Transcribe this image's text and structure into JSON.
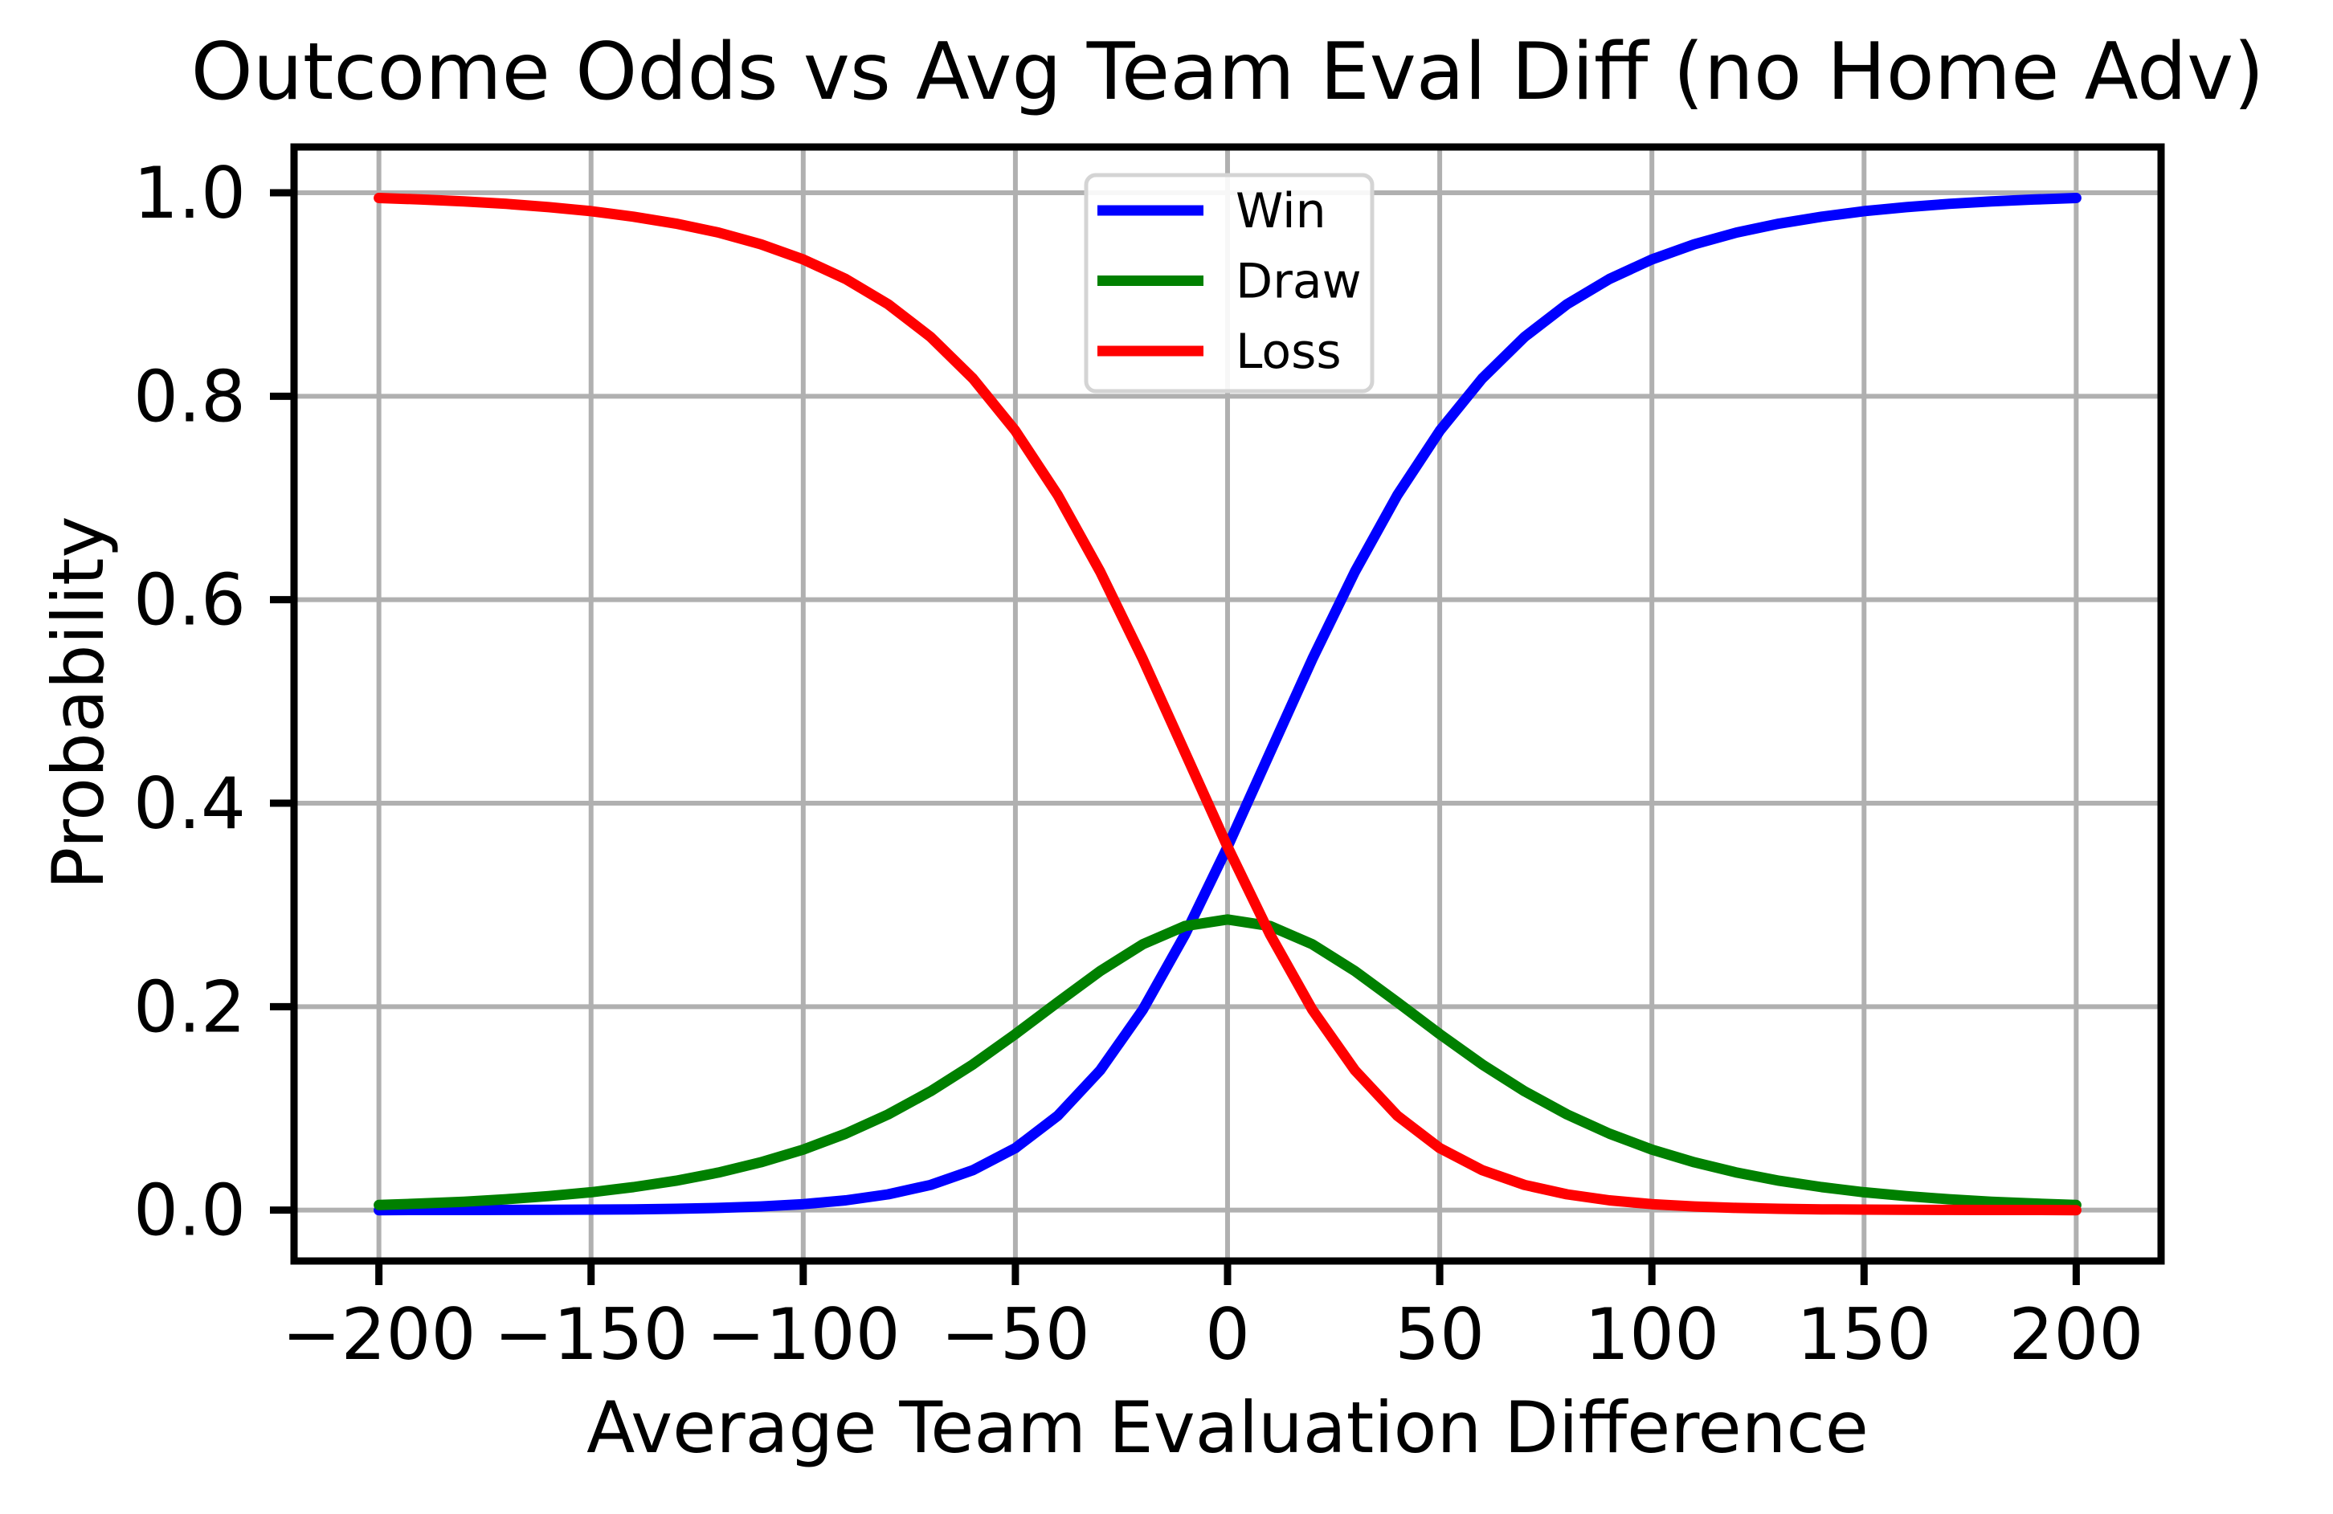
{
  "chart_data": {
    "type": "line",
    "title": "Outcome Odds vs Avg Team Eval Diff (no Home Adv)",
    "xlabel": "Average Team Evaluation Difference",
    "ylabel": "Probability",
    "xlim": [
      -220,
      220
    ],
    "ylim": [
      -0.05,
      1.045
    ],
    "grid": true,
    "x_ticks": {
      "values": [
        -200,
        -150,
        -100,
        -50,
        0,
        50,
        100,
        150,
        200
      ],
      "labels": [
        "−200",
        "−150",
        "−100",
        "−50",
        "0",
        "50",
        "100",
        "150",
        "200"
      ]
    },
    "y_ticks": {
      "values": [
        0.0,
        0.2,
        0.4,
        0.6,
        0.8,
        1.0
      ],
      "labels": [
        "0.0",
        "0.2",
        "0.4",
        "0.6",
        "0.8",
        "1.0"
      ]
    },
    "x": [
      -200,
      -190,
      -180,
      -170,
      -160,
      -150,
      -140,
      -130,
      -120,
      -110,
      -100,
      -90,
      -80,
      -70,
      -60,
      -50,
      -40,
      -30,
      -20,
      -10,
      0,
      10,
      20,
      30,
      40,
      50,
      60,
      70,
      80,
      90,
      100,
      110,
      120,
      130,
      140,
      150,
      160,
      170,
      180,
      190,
      200
    ],
    "series": [
      {
        "name": "Win",
        "color": "#0000ff",
        "values": [
          0.0,
          0.0001,
          0.0001,
          0.0002,
          0.0003,
          0.0005,
          0.0008,
          0.0013,
          0.0022,
          0.0036,
          0.0059,
          0.0096,
          0.0155,
          0.0248,
          0.0393,
          0.061,
          0.0928,
          0.1375,
          0.1969,
          0.2711,
          0.3571,
          0.4496,
          0.5418,
          0.6275,
          0.7028,
          0.766,
          0.8174,
          0.8583,
          0.8904,
          0.9153,
          0.9345,
          0.9494,
          0.9609,
          0.9697,
          0.9765,
          0.9819,
          0.9859,
          0.9891,
          0.9915,
          0.9934,
          0.9949
        ]
      },
      {
        "name": "Draw",
        "color": "#008000",
        "values": [
          0.005,
          0.0065,
          0.0083,
          0.0107,
          0.0138,
          0.0176,
          0.0226,
          0.0289,
          0.0369,
          0.047,
          0.0595,
          0.0751,
          0.0941,
          0.1168,
          0.1433,
          0.173,
          0.2044,
          0.235,
          0.2613,
          0.2793,
          0.2857,
          0.2793,
          0.2613,
          0.235,
          0.2044,
          0.173,
          0.1433,
          0.1168,
          0.0941,
          0.0751,
          0.0595,
          0.047,
          0.0369,
          0.0289,
          0.0226,
          0.0176,
          0.0138,
          0.0107,
          0.0083,
          0.0065,
          0.005
        ]
      },
      {
        "name": "Loss",
        "color": "#ff0000",
        "values": [
          0.9949,
          0.9934,
          0.9915,
          0.9891,
          0.9859,
          0.9819,
          0.9765,
          0.9697,
          0.9609,
          0.9494,
          0.9345,
          0.9153,
          0.8904,
          0.8583,
          0.8174,
          0.766,
          0.7028,
          0.6275,
          0.5418,
          0.4496,
          0.3571,
          0.2711,
          0.1969,
          0.1375,
          0.0928,
          0.061,
          0.0393,
          0.0248,
          0.0155,
          0.0096,
          0.0059,
          0.0036,
          0.0022,
          0.0013,
          0.0008,
          0.0005,
          0.0003,
          0.0002,
          0.0001,
          0.0001,
          0.0
        ]
      }
    ],
    "legend": {
      "position": "upper center",
      "entries": [
        "Win",
        "Draw",
        "Loss"
      ]
    },
    "colors": {
      "grid": "#b0b0b0",
      "spine": "#000000",
      "legend_border": "#d4d4d4",
      "background": "#ffffff"
    }
  }
}
